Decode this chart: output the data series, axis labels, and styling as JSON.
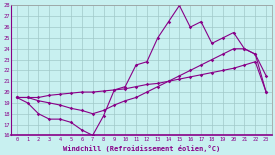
{
  "xlabel": "Windchill (Refroidissement éolien,°C)",
  "x_ticks": [
    0,
    1,
    2,
    3,
    4,
    5,
    6,
    7,
    8,
    9,
    10,
    11,
    12,
    13,
    14,
    15,
    16,
    17,
    18,
    19,
    20,
    21,
    22,
    23
  ],
  "ylim": [
    16,
    28
  ],
  "yticks": [
    16,
    17,
    18,
    19,
    20,
    21,
    22,
    23,
    24,
    25,
    26,
    27,
    28
  ],
  "background_color": "#c8f0f0",
  "grid_color": "#a0c8c8",
  "line_color": "#880088",
  "line1_y": [
    19.5,
    19.0,
    18.0,
    17.5,
    17.5,
    17.2,
    16.5,
    16.0,
    17.8,
    20.2,
    20.5,
    22.5,
    22.8,
    25.0,
    26.5,
    28.0,
    26.0,
    26.5,
    24.5,
    25.0,
    25.5,
    24.0,
    23.5,
    21.5
  ],
  "line2_y": [
    19.5,
    19.5,
    19.2,
    19.0,
    18.8,
    18.5,
    18.3,
    18.0,
    18.3,
    18.8,
    19.2,
    19.5,
    20.0,
    20.5,
    21.0,
    21.5,
    22.0,
    22.5,
    23.0,
    23.5,
    24.0,
    24.0,
    23.5,
    20.0
  ],
  "line3_y": [
    19.5,
    19.5,
    19.5,
    19.7,
    19.8,
    19.9,
    20.0,
    20.0,
    20.1,
    20.2,
    20.3,
    20.5,
    20.7,
    20.8,
    21.0,
    21.2,
    21.4,
    21.6,
    21.8,
    22.0,
    22.2,
    22.5,
    22.8,
    20.0
  ]
}
